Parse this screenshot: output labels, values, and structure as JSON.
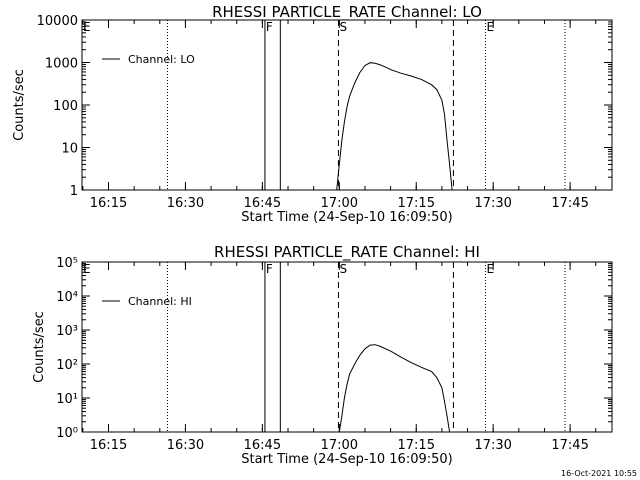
{
  "chart_data": [
    {
      "type": "line",
      "title": "RHESSI  PARTICLE_RATE  Channel:  LO",
      "xlabel": "Start Time (24-Sep-10 16:09:50)",
      "ylabel": "Counts/sec",
      "y_scale": "log",
      "ylim": [
        1,
        10000
      ],
      "xlim": [
        "16:09:50",
        "17:53:10"
      ],
      "x_ticks": [
        "16:15",
        "16:30",
        "16:45",
        "17:00",
        "17:15",
        "17:30",
        "17:45"
      ],
      "y_ticks": [
        "1",
        "10",
        "100",
        "1000",
        "10000"
      ],
      "legend": "Channel:  LO",
      "legend_position": "top-left",
      "markers": [
        {
          "time": "16:26:30",
          "style": "dotted",
          "label": ""
        },
        {
          "time": "16:45:30",
          "style": "solid",
          "label": "F"
        },
        {
          "time": "16:48:30",
          "style": "solid",
          "label": ""
        },
        {
          "time": "16:59:50",
          "style": "dashed",
          "label": "S"
        },
        {
          "time": "17:22:15",
          "style": "dashed",
          "label": ""
        },
        {
          "time": "17:28:30",
          "style": "dotted",
          "label": "E"
        },
        {
          "time": "17:44:00",
          "style": "dotted",
          "label": ""
        }
      ],
      "series": [
        {
          "name": "Channel:  LO",
          "x": [
            "16:59:30",
            "17:00:00",
            "17:00:30",
            "17:01:00",
            "17:01:30",
            "17:02:00",
            "17:03:00",
            "17:04:00",
            "17:05:00",
            "17:06:00",
            "17:07:00",
            "17:08:00",
            "17:09:00",
            "17:10:00",
            "17:12:00",
            "17:14:00",
            "17:16:00",
            "17:18:00",
            "17:19:00",
            "17:20:00",
            "17:20:30",
            "17:21:00",
            "17:21:30",
            "17:22:00"
          ],
          "y": [
            1,
            4,
            15,
            40,
            90,
            160,
            330,
            580,
            850,
            990,
            960,
            880,
            780,
            680,
            560,
            480,
            400,
            300,
            230,
            130,
            60,
            15,
            4,
            1
          ]
        }
      ]
    },
    {
      "type": "line",
      "title": "RHESSI  PARTICLE_RATE  Channel:  HI",
      "xlabel": "Start Time (24-Sep-10 16:09:50)",
      "ylabel": "Counts/sec",
      "y_scale": "log",
      "ylim": [
        1,
        100000
      ],
      "xlim": [
        "16:09:50",
        "17:53:10"
      ],
      "x_ticks": [
        "16:15",
        "16:30",
        "16:45",
        "17:00",
        "17:15",
        "17:30",
        "17:45"
      ],
      "y_ticks": [
        "10⁰",
        "10¹",
        "10²",
        "10³",
        "10⁴",
        "10⁵"
      ],
      "legend": "Channel:  HI",
      "legend_position": "top-left",
      "markers": [
        {
          "time": "16:26:30",
          "style": "dotted",
          "label": ""
        },
        {
          "time": "16:45:30",
          "style": "solid",
          "label": "F"
        },
        {
          "time": "16:48:30",
          "style": "solid",
          "label": ""
        },
        {
          "time": "16:59:50",
          "style": "dashed",
          "label": "S"
        },
        {
          "time": "17:22:15",
          "style": "dashed",
          "label": ""
        },
        {
          "time": "17:28:30",
          "style": "dotted",
          "label": "E"
        },
        {
          "time": "17:44:00",
          "style": "dotted",
          "label": ""
        }
      ],
      "series": [
        {
          "name": "Channel:  HI",
          "x": [
            "17:00:00",
            "17:00:30",
            "17:01:00",
            "17:01:30",
            "17:02:00",
            "17:03:00",
            "17:04:00",
            "17:05:00",
            "17:06:00",
            "17:07:00",
            "17:08:00",
            "17:10:00",
            "17:12:00",
            "17:14:00",
            "17:16:00",
            "17:18:00",
            "17:19:00",
            "17:20:00",
            "17:20:30",
            "17:21:00",
            "17:21:30"
          ],
          "y": [
            1,
            3,
            10,
            25,
            50,
            100,
            180,
            280,
            360,
            370,
            330,
            240,
            160,
            110,
            80,
            60,
            40,
            20,
            8,
            3,
            1
          ]
        }
      ]
    }
  ],
  "footer": {
    "timestamp": "16-Oct-2021 10:55"
  }
}
